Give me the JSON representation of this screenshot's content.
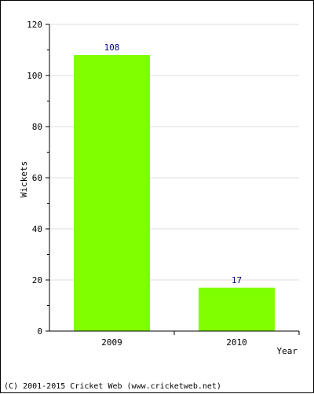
{
  "chart_data": {
    "type": "bar",
    "categories": [
      "2009",
      "2010"
    ],
    "values": [
      108,
      17
    ],
    "data_labels": [
      "108",
      "17"
    ],
    "xlabel": "Year",
    "ylabel": "Wickets",
    "ylim": [
      0,
      120
    ],
    "yticks": [
      "0",
      "20",
      "40",
      "60",
      "80",
      "100",
      "120"
    ],
    "grid": true,
    "bar_color": "#80ff00",
    "grid_color": "#dddddd"
  },
  "footer": {
    "copyright": "(C) 2001-2015 Cricket Web (www.cricketweb.net)"
  }
}
